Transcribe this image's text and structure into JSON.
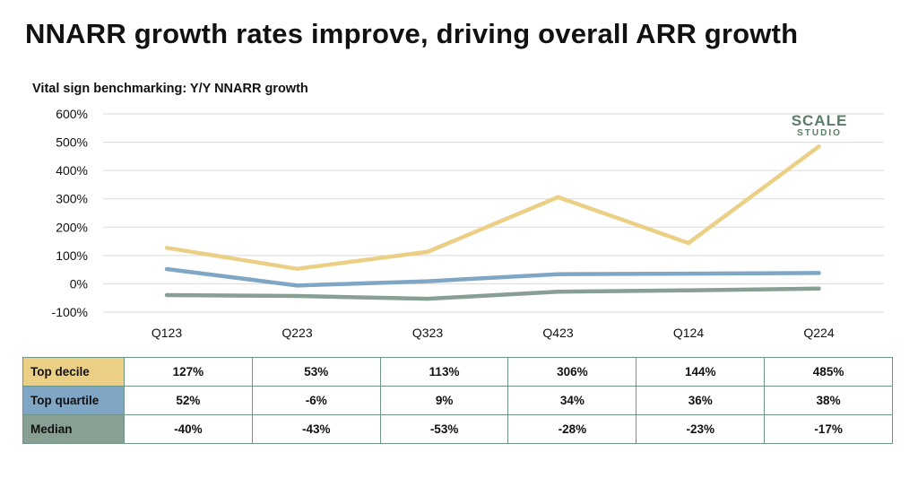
{
  "title": "NNARR growth rates improve, driving overall ARR growth",
  "logo": {
    "line1": "SCALE",
    "line2": "STUDIO"
  },
  "chart_data": {
    "type": "line",
    "title": "Vital sign benchmarking: Y/Y NNARR growth",
    "categories": [
      "Q123",
      "Q223",
      "Q323",
      "Q423",
      "Q124",
      "Q224"
    ],
    "ylim": [
      -100,
      600
    ],
    "yticks": [
      600,
      500,
      400,
      300,
      200,
      100,
      0,
      -100
    ],
    "ytick_labels": [
      "600%",
      "500%",
      "400%",
      "300%",
      "200%",
      "100%",
      "0%",
      "-100%"
    ],
    "grid": true,
    "series": [
      {
        "name": "Top decile",
        "color": "#ebcf85",
        "values": [
          127,
          53,
          113,
          306,
          144,
          485
        ],
        "labels": [
          "127%",
          "53%",
          "113%",
          "306%",
          "144%",
          "485%"
        ]
      },
      {
        "name": "Top quartile",
        "color": "#7fa6c5",
        "values": [
          52,
          -6,
          9,
          34,
          36,
          38
        ],
        "labels": [
          "52%",
          "-6%",
          "9%",
          "34%",
          "36%",
          "38%"
        ]
      },
      {
        "name": "Median",
        "color": "#889f93",
        "values": [
          -40,
          -43,
          -53,
          -28,
          -23,
          -17
        ],
        "labels": [
          "-40%",
          "-43%",
          "-53%",
          "-28%",
          "-23%",
          "-17%"
        ]
      }
    ]
  }
}
